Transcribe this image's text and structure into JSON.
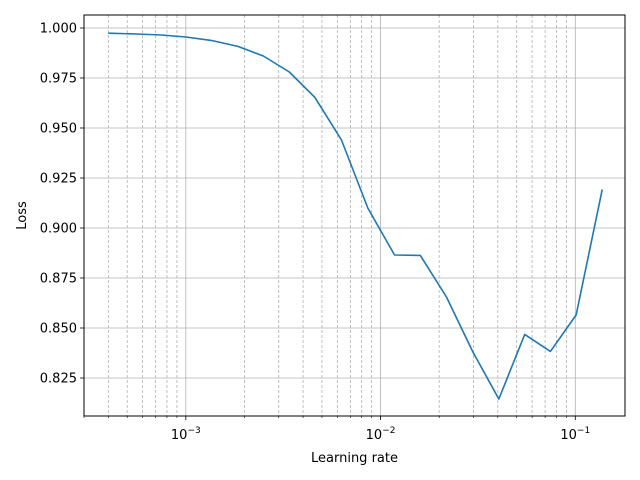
{
  "chart_data": {
    "type": "line",
    "xlabel": "Learning rate",
    "ylabel": "Loss",
    "x_scale": "log",
    "xlim": [
      0.0003,
      0.18
    ],
    "ylim": [
      0.806,
      1.0065
    ],
    "grid": true,
    "colors": {
      "line": "#1f77b4",
      "grid_major": "#b0b0b0",
      "grid_minor": "#b0b0b0"
    },
    "x_ticks": [
      {
        "value": 0.001,
        "base": "10",
        "exp": "−3"
      },
      {
        "value": 0.01,
        "base": "10",
        "exp": "−2"
      },
      {
        "value": 0.1,
        "base": "10",
        "exp": "−1"
      }
    ],
    "y_ticks": [
      {
        "value": 0.825,
        "label": "0.825"
      },
      {
        "value": 0.85,
        "label": "0.850"
      },
      {
        "value": 0.875,
        "label": "0.875"
      },
      {
        "value": 0.9,
        "label": "0.900"
      },
      {
        "value": 0.925,
        "label": "0.925"
      },
      {
        "value": 0.95,
        "label": "0.950"
      },
      {
        "value": 0.975,
        "label": "0.975"
      },
      {
        "value": 1.0,
        "label": "1.000"
      }
    ],
    "series": [
      {
        "x": [
          0.0004,
          0.00056,
          0.00075,
          0.001,
          0.00135,
          0.00185,
          0.0025,
          0.0034,
          0.0046,
          0.0063,
          0.0086,
          0.0118,
          0.016,
          0.0218,
          0.0298,
          0.0405,
          0.055,
          0.0745,
          0.101,
          0.1375
        ],
        "y": [
          0.9974,
          0.997,
          0.9965,
          0.9955,
          0.9938,
          0.9908,
          0.986,
          0.978,
          0.9653,
          0.944,
          0.91,
          0.8865,
          0.8863,
          0.8655,
          0.838,
          0.8145,
          0.8468,
          0.8383,
          0.8565,
          0.9192
        ]
      }
    ]
  }
}
